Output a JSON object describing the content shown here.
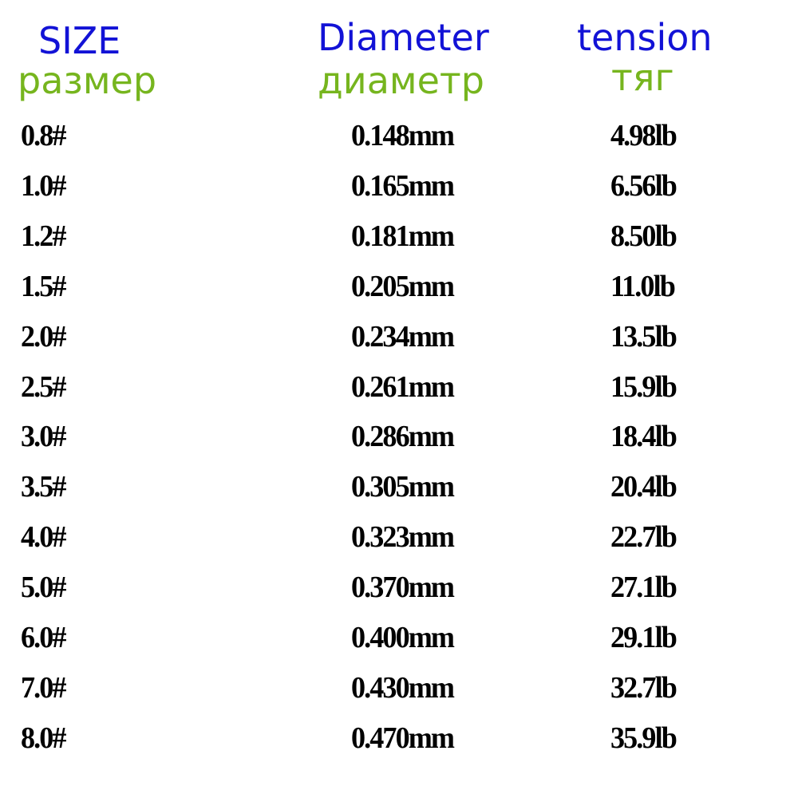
{
  "headers": {
    "size": {
      "en": "SIZE",
      "ru": "размер"
    },
    "diameter": {
      "en": "Diameter",
      "ru": "диаметр"
    },
    "tension": {
      "en": "tension",
      "ru": "тяг"
    }
  },
  "colors": {
    "english_header": "#1212d6",
    "russian_header": "#76b51e",
    "values": "#000000"
  },
  "rows": [
    {
      "size": "0.8#",
      "diameter": "0.148mm",
      "tension": "4.98lb"
    },
    {
      "size": "1.0#",
      "diameter": "0.165mm",
      "tension": "6.56lb"
    },
    {
      "size": "1.2#",
      "diameter": "0.181mm",
      "tension": "8.50lb"
    },
    {
      "size": "1.5#",
      "diameter": "0.205mm",
      "tension": "11.0lb"
    },
    {
      "size": "2.0#",
      "diameter": "0.234mm",
      "tension": "13.5lb"
    },
    {
      "size": "2.5#",
      "diameter": "0.261mm",
      "tension": "15.9lb"
    },
    {
      "size": "3.0#",
      "diameter": "0.286mm",
      "tension": "18.4lb"
    },
    {
      "size": "3.5#",
      "diameter": "0.305mm",
      "tension": "20.4lb"
    },
    {
      "size": "4.0#",
      "diameter": "0.323mm",
      "tension": "22.7lb"
    },
    {
      "size": "5.0#",
      "diameter": "0.370mm",
      "tension": "27.1lb"
    },
    {
      "size": "6.0#",
      "diameter": "0.400mm",
      "tension": "29.1lb"
    },
    {
      "size": "7.0#",
      "diameter": "0.430mm",
      "tension": "32.7lb"
    },
    {
      "size": "8.0#",
      "diameter": "0.470mm",
      "tension": "35.9lb"
    }
  ]
}
